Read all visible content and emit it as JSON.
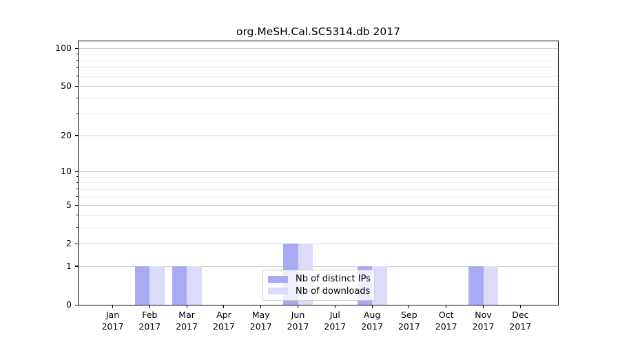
{
  "title": "org.MeSH.Cal.SC5314.db 2017",
  "chart_data": {
    "type": "bar",
    "title": "org.MeSH.Cal.SC5314.db 2017",
    "categories": [
      "Jan",
      "Feb",
      "Mar",
      "Apr",
      "May",
      "Jun",
      "Jul",
      "Aug",
      "Sep",
      "Oct",
      "Nov",
      "Dec"
    ],
    "x_tick_year": "2017",
    "series": [
      {
        "name": "Nb of distinct IPs",
        "color": "#aaaaf2",
        "values": [
          0,
          1,
          1,
          0,
          0,
          2,
          0,
          1,
          0,
          0,
          1,
          0
        ]
      },
      {
        "name": "Nb of downloads",
        "color": "#dcdcfa",
        "values": [
          0,
          1,
          1,
          0,
          0,
          2,
          0,
          1,
          0,
          0,
          1,
          0
        ]
      }
    ],
    "xlabel": "",
    "ylabel": "",
    "y_scale": "log1p",
    "y_ticks": [
      0,
      1,
      2,
      5,
      10,
      20,
      50,
      100
    ],
    "y_minor_ticks": [
      3,
      4,
      6,
      7,
      8,
      9,
      30,
      40,
      60,
      70,
      80,
      90
    ],
    "ylim": [
      0,
      113
    ],
    "grid": true,
    "legend": {
      "entries": [
        "Nb of distinct IPs",
        "Nb of downloads"
      ],
      "position": "lower center inside"
    }
  },
  "colors": {
    "bar_distinct_ips": "#aaaaf2",
    "bar_downloads": "#dcdcfa",
    "grid_major": "#cfcfcf",
    "grid_minor": "#ebebeb",
    "spine": "#000000",
    "legend_border": "#cccccc",
    "background": "#ffffff"
  }
}
